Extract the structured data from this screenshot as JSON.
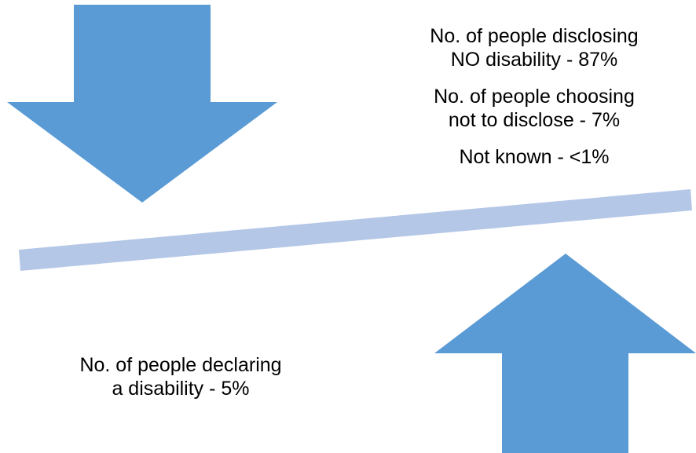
{
  "colors": {
    "arrow": "#5B9BD5",
    "beam": "#B4C7E7",
    "text": "#000000",
    "background": "#FFFFFF"
  },
  "icons": {
    "down_arrow": "arrow-down-icon",
    "up_arrow": "arrow-up-icon"
  },
  "labels": {
    "no_disability": {
      "line1": "No. of people disclosing",
      "line2": "NO disability - 87%"
    },
    "not_disclosed": {
      "line1": "No. of people choosing",
      "line2": "not to disclose - 7%"
    },
    "not_known": {
      "line1": "Not known - <1%"
    },
    "disability": {
      "line1": "No. of people declaring",
      "line2": "a disability - 5%"
    }
  }
}
